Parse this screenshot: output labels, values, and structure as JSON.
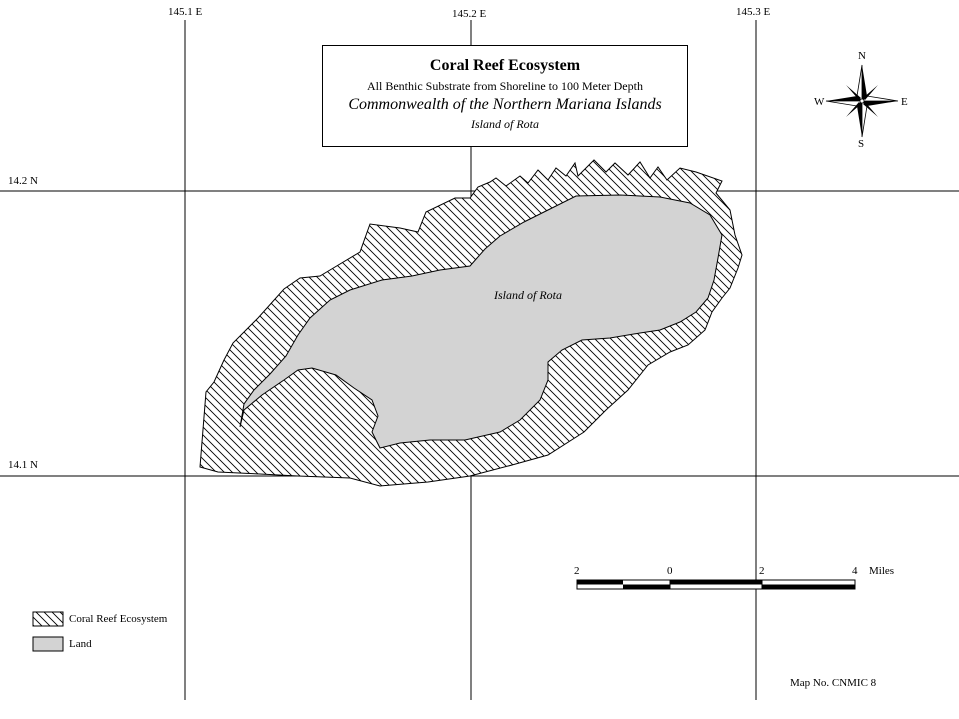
{
  "title": {
    "main": "Coral Reef Ecosystem",
    "subtitle": "All Benthic Substrate from Shoreline to 100 Meter Depth",
    "region": "Commonwealth of the Northern Mariana Islands",
    "island": "Island of Rota"
  },
  "graticule": {
    "longitudes": [
      "145.1 E",
      "145.2 E",
      "145.3 E"
    ],
    "latitudes": [
      "14.2 N",
      "14.1 N"
    ]
  },
  "compass": {
    "north": "N",
    "south": "S",
    "east": "E",
    "west": "W"
  },
  "island_label": "Island of Rota",
  "scale_bar": {
    "ticks": [
      "2",
      "0",
      "2",
      "4"
    ],
    "unit": "Miles"
  },
  "legend": {
    "items": [
      {
        "label": "Coral Reef Ecosystem",
        "pattern": "diagonal-hatch"
      },
      {
        "label": "Land",
        "color": "#d3d3d3"
      }
    ]
  },
  "map_number": "Map No. CNMIC 8",
  "colors": {
    "land": "#d3d3d3",
    "reef_hatch": "#000000",
    "background": "#ffffff"
  }
}
